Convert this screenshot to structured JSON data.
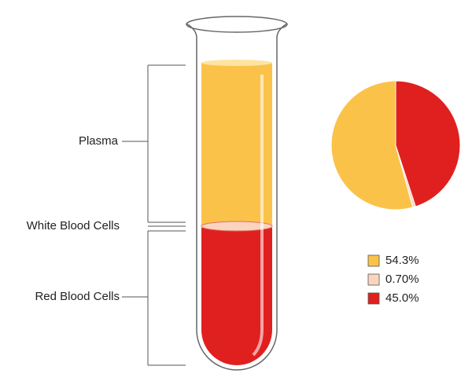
{
  "labels": [
    "Plasma",
    "White Blood Cells",
    "Red Blood Cells"
  ],
  "chart_data": {
    "type": "pie",
    "values": [
      54.3,
      0.7,
      45.0
    ],
    "value_labels": [
      "54.3%",
      "0.70%",
      "45.0%"
    ],
    "colors": [
      "#fbc24a",
      "#fbd4c0",
      "#e0201f"
    ]
  }
}
